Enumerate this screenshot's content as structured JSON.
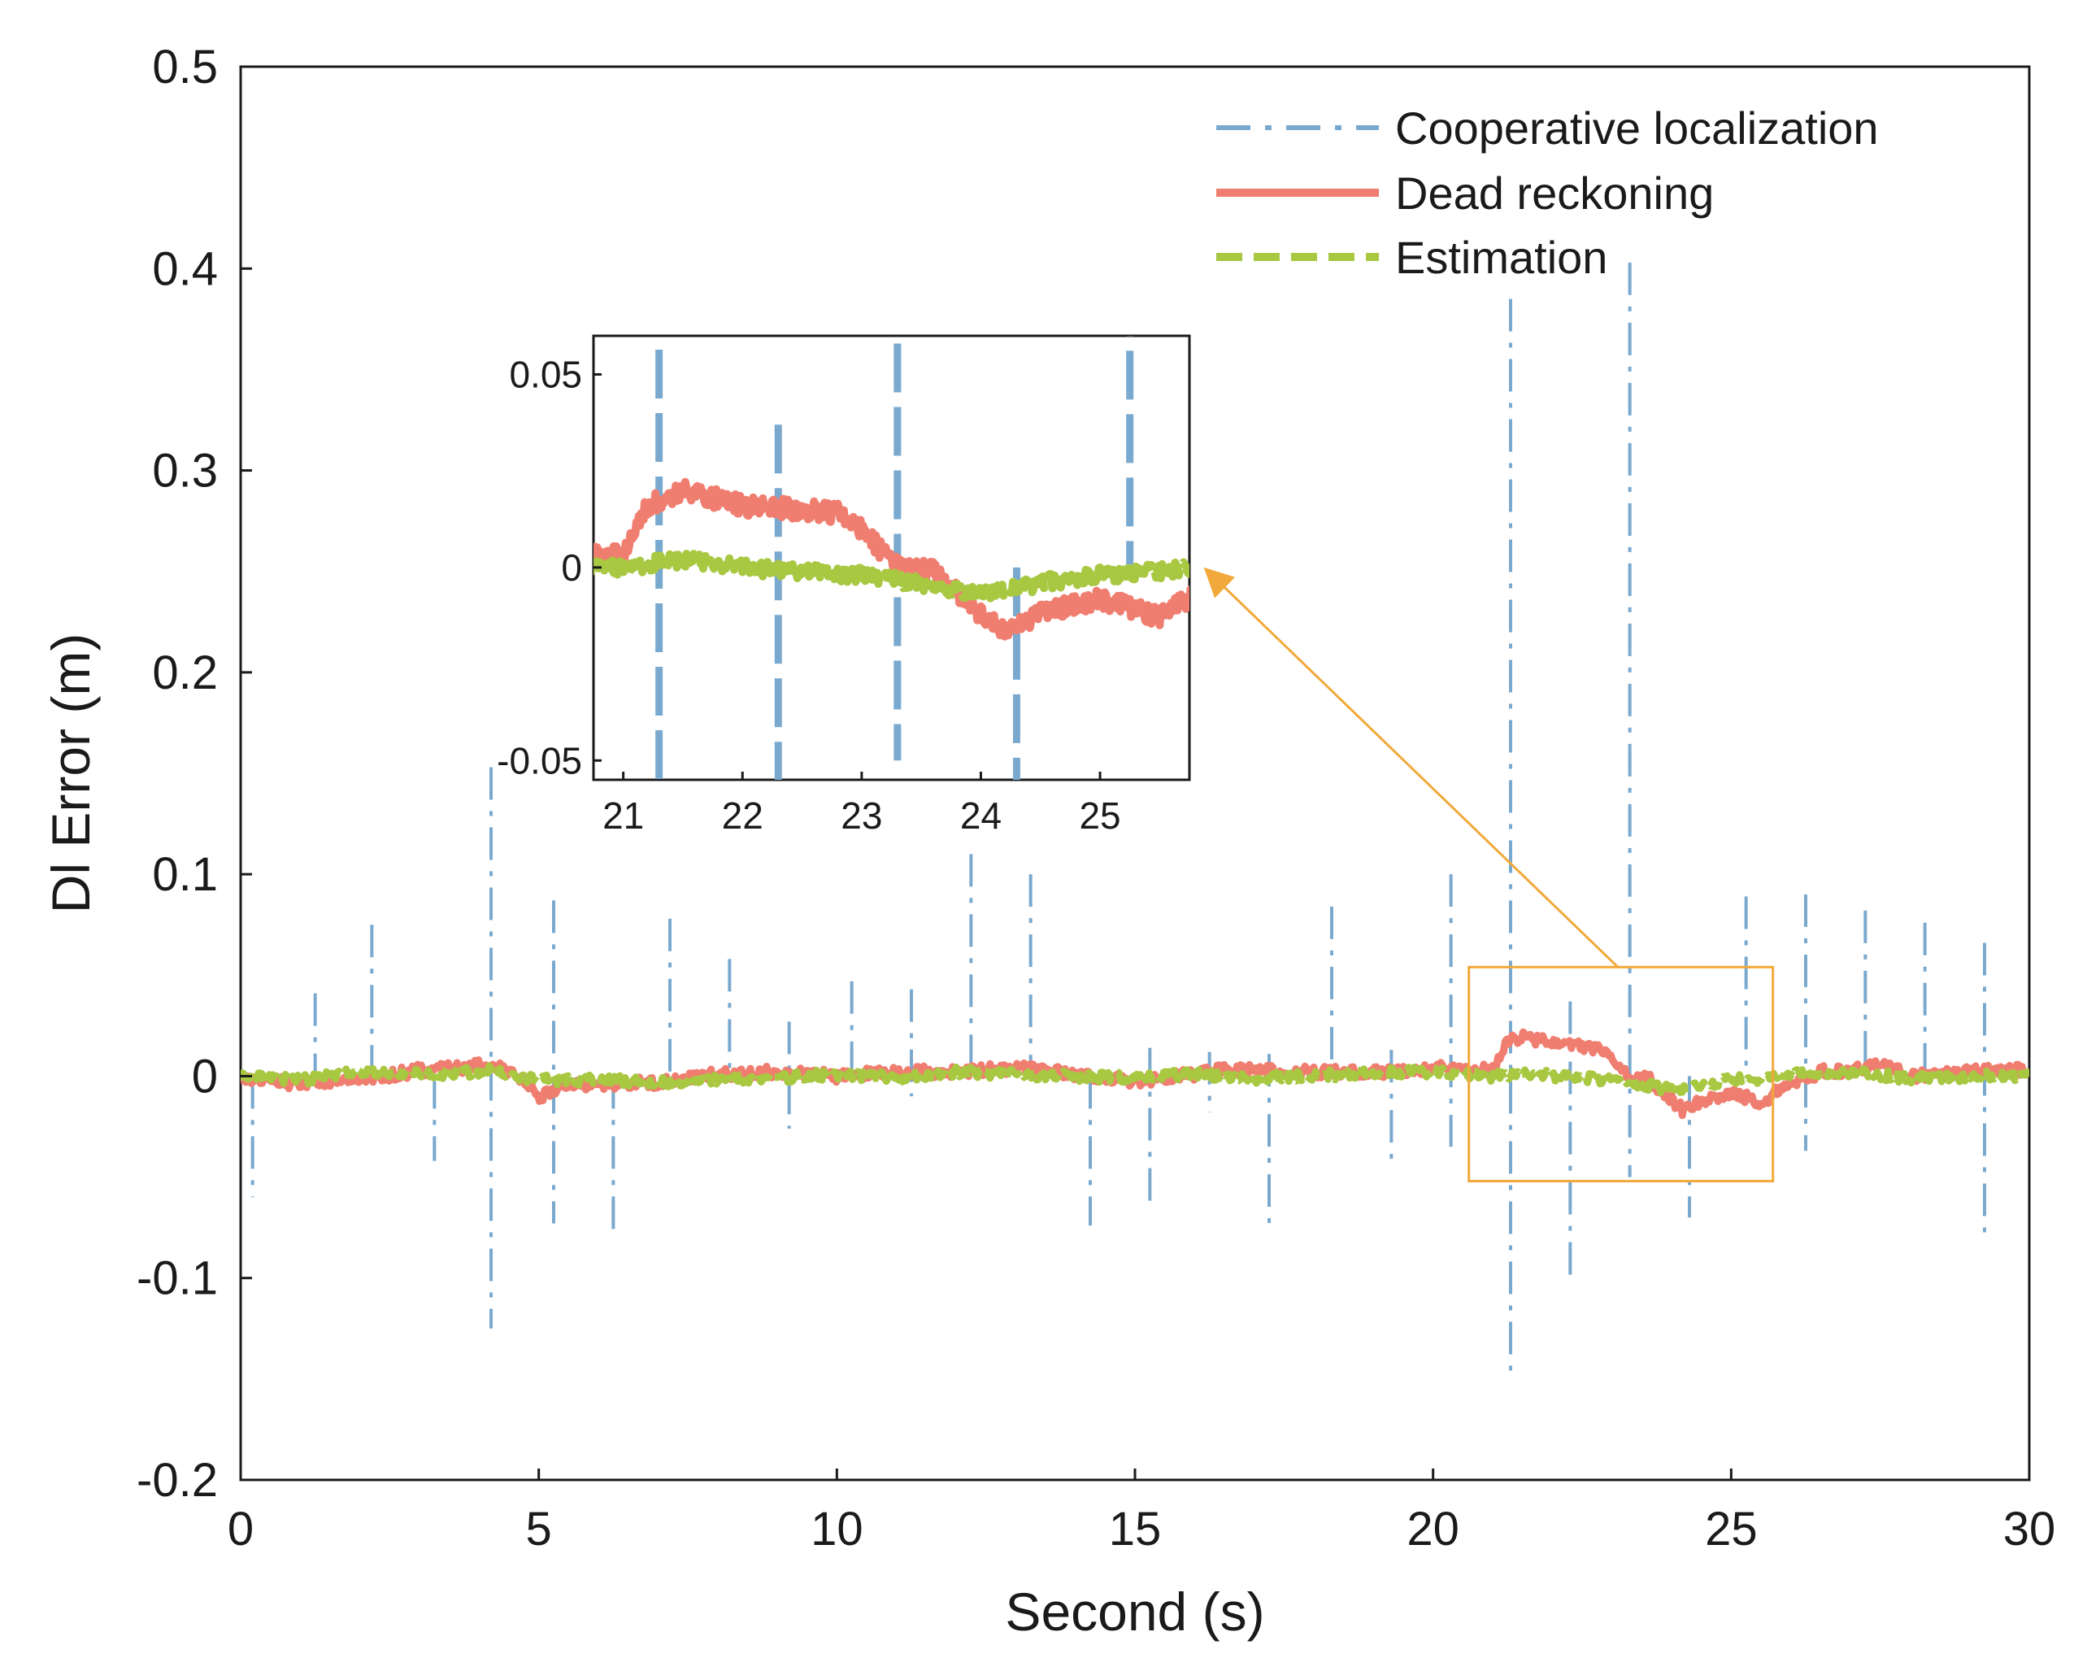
{
  "chart_data": {
    "type": "line",
    "title": "",
    "xlabel": "Second (s)",
    "ylabel": "Dl Error (m)",
    "xlim": [
      0,
      30
    ],
    "ylim": [
      -0.2,
      0.5
    ],
    "grid": false,
    "legend_position": "top-right",
    "x_ticks": [
      {
        "value": 0,
        "label": "0"
      },
      {
        "value": 5,
        "label": "5"
      },
      {
        "value": 10,
        "label": "10"
      },
      {
        "value": 15,
        "label": "15"
      },
      {
        "value": 20,
        "label": "20"
      },
      {
        "value": 25,
        "label": "25"
      },
      {
        "value": 30,
        "label": "30"
      }
    ],
    "y_ticks": [
      {
        "value": -0.2,
        "label": "-0.2"
      },
      {
        "value": -0.1,
        "label": "-0.1"
      },
      {
        "value": 0,
        "label": "0"
      },
      {
        "value": 0.1,
        "label": "0.1"
      },
      {
        "value": 0.2,
        "label": "0.2"
      },
      {
        "value": 0.3,
        "label": "0.3"
      },
      {
        "value": 0.4,
        "label": "0.4"
      },
      {
        "value": 0.5,
        "label": "0.5"
      }
    ],
    "series": [
      {
        "name": "Cooperative localization",
        "color": "#7aa9cf",
        "style": "dash-dot",
        "spikes": [
          {
            "x": 0.2,
            "max": 0.0,
            "min": -0.06
          },
          {
            "x": 1.25,
            "max": 0.041,
            "min": 0.0
          },
          {
            "x": 2.2,
            "max": 0.075,
            "min": 0.0
          },
          {
            "x": 3.25,
            "max": 0.0,
            "min": -0.042
          },
          {
            "x": 4.2,
            "max": 0.153,
            "min": -0.125
          },
          {
            "x": 5.25,
            "max": 0.087,
            "min": -0.073
          },
          {
            "x": 6.25,
            "max": 0.0,
            "min": -0.077
          },
          {
            "x": 7.2,
            "max": 0.078,
            "min": 0.0
          },
          {
            "x": 8.2,
            "max": 0.058,
            "min": 0.0
          },
          {
            "x": 9.2,
            "max": 0.027,
            "min": -0.026
          },
          {
            "x": 10.25,
            "max": 0.047,
            "min": 0.0
          },
          {
            "x": 11.25,
            "max": 0.043,
            "min": -0.01
          },
          {
            "x": 12.25,
            "max": 0.11,
            "min": 0.0
          },
          {
            "x": 13.25,
            "max": 0.1,
            "min": 0.0
          },
          {
            "x": 14.25,
            "max": 0.0,
            "min": -0.074
          },
          {
            "x": 15.25,
            "max": 0.014,
            "min": -0.067
          },
          {
            "x": 16.25,
            "max": 0.012,
            "min": -0.018
          },
          {
            "x": 17.25,
            "max": 0.011,
            "min": -0.078
          },
          {
            "x": 18.3,
            "max": 0.084,
            "min": 0.0
          },
          {
            "x": 19.3,
            "max": 0.013,
            "min": -0.042
          },
          {
            "x": 20.3,
            "max": 0.1,
            "min": -0.035
          },
          {
            "x": 21.3,
            "max": 0.385,
            "min": -0.148
          },
          {
            "x": 22.3,
            "max": 0.037,
            "min": -0.1
          },
          {
            "x": 23.3,
            "max": 0.403,
            "min": -0.05
          },
          {
            "x": 24.3,
            "max": 0.0,
            "min": -0.07
          },
          {
            "x": 25.25,
            "max": 0.089,
            "min": 0.0
          },
          {
            "x": 26.25,
            "max": 0.09,
            "min": -0.037
          },
          {
            "x": 27.25,
            "max": 0.082,
            "min": 0.0
          },
          {
            "x": 28.25,
            "max": 0.076,
            "min": 0.0
          },
          {
            "x": 29.25,
            "max": 0.066,
            "min": -0.08
          }
        ]
      },
      {
        "name": "Dead reckoning",
        "color": "#f07e70",
        "style": "solid",
        "x": [
          0,
          1,
          2,
          3,
          3.8,
          4.2,
          4.6,
          5,
          5.5,
          6,
          7,
          8,
          9,
          10,
          11,
          12,
          13,
          14,
          15,
          16,
          16.8,
          17,
          18,
          19,
          19.5,
          20,
          20.7,
          21,
          21.2,
          21.5,
          22,
          22.5,
          22.8,
          23,
          23.3,
          23.6,
          24,
          24.2,
          24.5,
          25,
          25.5,
          25.8,
          26.5,
          27,
          27.5,
          28,
          29,
          30
        ],
        "values": [
          0,
          -0.004,
          -0.002,
          0.003,
          0.004,
          0.007,
          0.0,
          -0.01,
          -0.004,
          -0.004,
          -0.003,
          0.001,
          0.002,
          0.0,
          0.002,
          0.002,
          0.004,
          0.001,
          -0.003,
          0.001,
          0.004,
          0.003,
          0.002,
          0.002,
          0.003,
          0.004,
          0.003,
          0.003,
          0.016,
          0.02,
          0.016,
          0.015,
          0.014,
          0.01,
          0.0,
          -0.001,
          -0.012,
          -0.017,
          -0.012,
          -0.008,
          -0.013,
          -0.007,
          0.002,
          0.003,
          0.006,
          0.0,
          0.002,
          0.003
        ]
      },
      {
        "name": "Estimation",
        "color": "#a8c842",
        "style": "dashed",
        "x": [
          0,
          1,
          2,
          3,
          4,
          4.2,
          4.5,
          5,
          6,
          7,
          8,
          9,
          10,
          11,
          12,
          13,
          14,
          15,
          16,
          17,
          18,
          19,
          20,
          21,
          21.5,
          22,
          22.5,
          23,
          23.5,
          24,
          24.5,
          25,
          25.5,
          26,
          27,
          28,
          29,
          30
        ],
        "values": [
          0,
          -0.002,
          0.002,
          0.001,
          0.002,
          0.004,
          0.001,
          -0.002,
          -0.002,
          -0.003,
          -0.002,
          -0.001,
          0.001,
          -0.001,
          0.002,
          0.001,
          0.0,
          -0.001,
          0.001,
          -0.001,
          0.0,
          0.002,
          0.002,
          0.0,
          0.002,
          0.0,
          -0.001,
          -0.002,
          -0.004,
          -0.007,
          -0.004,
          -0.002,
          -0.001,
          0.001,
          0.002,
          -0.001,
          0.0,
          0.0
        ]
      }
    ],
    "inset": {
      "xlim": [
        20.75,
        25.75
      ],
      "ylim": [
        -0.055,
        0.06
      ],
      "x_ticks": [
        {
          "value": 21,
          "label": "21"
        },
        {
          "value": 22,
          "label": "22"
        },
        {
          "value": 23,
          "label": "23"
        },
        {
          "value": 24,
          "label": "24"
        },
        {
          "value": 25,
          "label": "25"
        }
      ],
      "y_ticks": [
        {
          "value": -0.05,
          "label": "-0.05"
        },
        {
          "value": 0,
          "label": "0"
        },
        {
          "value": 0.05,
          "label": "0.05"
        }
      ],
      "zoom_box": {
        "x": [
          20.6,
          25.7
        ],
        "y": [
          -0.052,
          0.054
        ]
      },
      "annotation_color": "#f2a93b"
    }
  }
}
